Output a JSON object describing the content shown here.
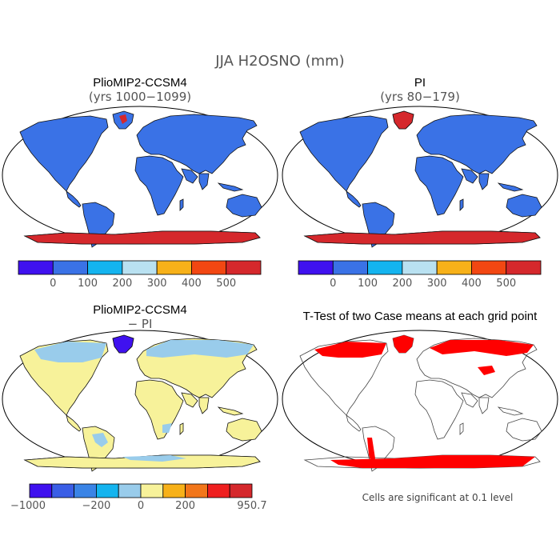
{
  "title": "JJA H2OSNO (mm)",
  "panels": [
    {
      "id": "top-left",
      "title": "PlioMIP2-CCSM4",
      "subtitle": "(yrs 1000−1099)"
    },
    {
      "id": "top-right",
      "title": "PI",
      "subtitle": "(yrs 80−179)"
    },
    {
      "id": "bottom-left",
      "title": "PlioMIP2-CCSM4",
      "subtitle": "− PI"
    },
    {
      "id": "bottom-right",
      "title": "T-Test of two Case means at each grid point",
      "subtitle": ""
    }
  ],
  "colorbar_abs": {
    "colors": [
      "#3f11ef",
      "#3a72e6",
      "#14b4ef",
      "#b9e1f1",
      "#f7b119",
      "#f24712",
      "#d5282c"
    ],
    "labels": [
      "0",
      "100",
      "200",
      "300",
      "400",
      "500"
    ]
  },
  "colorbar_diff": {
    "colors": [
      "#3f11ef",
      "#3a5ee6",
      "#3a84e6",
      "#14b4ef",
      "#99cceb",
      "#f7f29a",
      "#f7b119",
      "#f2761a",
      "#ef1f1f",
      "#d5282c"
    ],
    "labels": [
      "−1000",
      "−200",
      "0",
      "200",
      "950.7"
    ]
  },
  "note": "Cells are significant at 0.1 level",
  "map_colors": {
    "land_abs": "#3a72e6",
    "snow_high": "#d5282c",
    "diff_positive": "#f7f29a",
    "diff_light_blue": "#99cceb",
    "diff_strong_negative": "#3f11ef",
    "significant": "#ff0000"
  }
}
